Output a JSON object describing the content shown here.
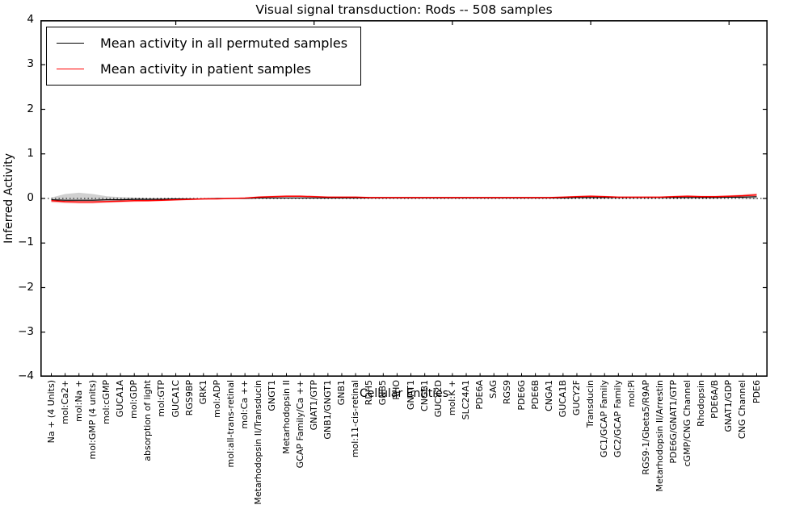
{
  "title": "Visual signal transduction: Rods -- 508 samples",
  "axes": {
    "xlabel": "Cellular Entities",
    "ylabel": "Inferred Activity"
  },
  "chart_data": {
    "type": "line",
    "title": "Visual signal transduction: Rods -- 508 samples",
    "xlabel": "Cellular Entities",
    "ylabel": "Inferred Activity",
    "ylim": [
      -4,
      4
    ],
    "yticks": [
      4,
      3,
      2,
      1,
      0,
      -1,
      -2,
      -3,
      -4
    ],
    "grid": false,
    "legend_position": "upper left",
    "zero_line": {
      "style": "dotted",
      "color": "#000000",
      "y": 0
    },
    "top_tick_category_indices": [
      9,
      19,
      29,
      39,
      49
    ],
    "categories": [
      "Na + (4 Units)",
      "mol:Ca2+",
      "mol:Na +",
      "mol:GMP (4 units)",
      "mol:cGMP",
      "GUCA1A",
      "mol:GDP",
      "absorption of light",
      "mol:GTP",
      "GUCA1C",
      "RGS9BP",
      "GRK1",
      "mol:ADP",
      "mol:all-trans-retinal",
      "mol:Ca ++",
      "Metarhodopsin II/Transducin",
      "GNGT1",
      "Metarhodopsin II",
      "GCAP Family/Ca ++",
      "GNAT1/GTP",
      "GNB1/GNGT1",
      "GNB1",
      "mol:11-cis-retinal",
      "RDH5",
      "GNB5",
      "RHO",
      "GNAT1",
      "CNGB1",
      "GUCY2D",
      "mol:K +",
      "SLC24A1",
      "PDE6A",
      "SAG",
      "RGS9",
      "PDE6G",
      "PDE6B",
      "CNGA1",
      "GUCA1B",
      "GUCY2F",
      "Transducin",
      "GC1/GCAP Family",
      "GC2/GCAP Family",
      "mol:Pi",
      "RGS9-1/Gbeta5/R9AP",
      "Metarhodopsin II/Arrestin",
      "PDE6G/GNAT1/GTP",
      "cGMP/CNG Channel",
      "Rhodopsin",
      "PDE6A/B",
      "GNAT1/GDP",
      "CNG Channel",
      "PDE6"
    ],
    "series": [
      {
        "name": "Mean activity in all permuted samples",
        "color": "#000000",
        "line_width": 1.2,
        "band_color": "#c8c8c8",
        "values": [
          -0.03,
          -0.04,
          -0.04,
          -0.04,
          -0.03,
          -0.03,
          -0.02,
          -0.02,
          -0.02,
          -0.01,
          -0.01,
          -0.01,
          0,
          0,
          0,
          0.01,
          0.01,
          0.01,
          0.01,
          0.01,
          0.01,
          0.01,
          0.01,
          0.01,
          0.01,
          0.01,
          0.01,
          0.01,
          0.01,
          0.01,
          0.01,
          0.01,
          0.01,
          0.01,
          0.01,
          0.01,
          0.01,
          0.01,
          0.02,
          0.02,
          0.02,
          0.02,
          0.02,
          0.02,
          0.02,
          0.02,
          0.02,
          0.02,
          0.02,
          0.03,
          0.03,
          0.04
        ],
        "band_upper": [
          0.02,
          0.1,
          0.13,
          0.1,
          0.05,
          0.03,
          0.02,
          0.01,
          0.01,
          0.01,
          0.01,
          0.01,
          0.01,
          0.01,
          0.01,
          0.02,
          0.02,
          0.02,
          0.02,
          0.02,
          0.02,
          0.02,
          0.02,
          0.02,
          0.02,
          0.02,
          0.02,
          0.02,
          0.02,
          0.02,
          0.02,
          0.02,
          0.02,
          0.02,
          0.02,
          0.02,
          0.02,
          0.02,
          0.03,
          0.04,
          0.03,
          0.03,
          0.03,
          0.03,
          0.03,
          0.03,
          0.04,
          0.04,
          0.04,
          0.06,
          0.08,
          0.1
        ],
        "band_lower": [
          -0.08,
          -0.09,
          -0.09,
          -0.08,
          -0.07,
          -0.06,
          -0.05,
          -0.04,
          -0.03,
          -0.02,
          -0.02,
          -0.02,
          -0.01,
          -0.01,
          -0.01,
          0,
          0,
          0,
          0,
          0,
          0,
          0,
          0,
          0,
          0,
          0,
          0,
          0,
          0,
          0,
          0,
          0,
          0,
          0,
          0,
          0,
          0,
          0,
          0.01,
          0.01,
          0.01,
          0.01,
          0.01,
          0.01,
          0.01,
          0.01,
          0.01,
          0.01,
          0.01,
          0,
          -0.01,
          -0.02
        ]
      },
      {
        "name": "Mean activity in patient samples",
        "color": "#ff0000",
        "line_width": 1.5,
        "band_color": "#ff9e9e",
        "values": [
          -0.05,
          -0.07,
          -0.08,
          -0.08,
          -0.07,
          -0.06,
          -0.05,
          -0.05,
          -0.04,
          -0.03,
          -0.02,
          -0.01,
          -0.01,
          0,
          0.01,
          0.03,
          0.04,
          0.05,
          0.05,
          0.04,
          0.03,
          0.03,
          0.03,
          0.02,
          0.02,
          0.02,
          0.02,
          0.02,
          0.02,
          0.02,
          0.02,
          0.02,
          0.02,
          0.02,
          0.02,
          0.02,
          0.02,
          0.03,
          0.04,
          0.05,
          0.04,
          0.03,
          0.03,
          0.03,
          0.03,
          0.04,
          0.05,
          0.04,
          0.04,
          0.05,
          0.06,
          0.08
        ],
        "band_upper": [
          -0.02,
          -0.04,
          -0.05,
          -0.05,
          -0.04,
          -0.03,
          -0.03,
          -0.02,
          -0.02,
          -0.01,
          0,
          0,
          0.01,
          0.01,
          0.02,
          0.05,
          0.06,
          0.07,
          0.07,
          0.06,
          0.04,
          0.04,
          0.04,
          0.03,
          0.03,
          0.03,
          0.03,
          0.03,
          0.03,
          0.03,
          0.03,
          0.03,
          0.03,
          0.03,
          0.03,
          0.03,
          0.03,
          0.04,
          0.06,
          0.07,
          0.06,
          0.04,
          0.04,
          0.04,
          0.04,
          0.06,
          0.07,
          0.06,
          0.06,
          0.07,
          0.09,
          0.12
        ],
        "band_lower": [
          -0.09,
          -0.11,
          -0.12,
          -0.12,
          -0.1,
          -0.09,
          -0.08,
          -0.07,
          -0.06,
          -0.05,
          -0.04,
          -0.03,
          -0.02,
          -0.01,
          0,
          0.01,
          0.02,
          0.03,
          0.03,
          0.02,
          0.02,
          0.02,
          0.02,
          0.01,
          0.01,
          0.01,
          0.01,
          0.01,
          0.01,
          0.01,
          0.01,
          0.01,
          0.01,
          0.01,
          0.01,
          0.01,
          0.01,
          0.02,
          0.02,
          0.03,
          0.02,
          0.02,
          0.02,
          0.02,
          0.02,
          0.02,
          0.03,
          0.02,
          0.02,
          0.03,
          0.03,
          0.04
        ]
      }
    ]
  }
}
